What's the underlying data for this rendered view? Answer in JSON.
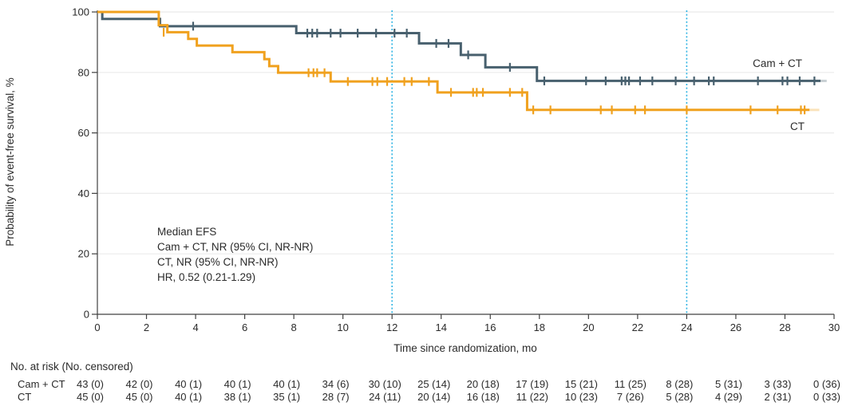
{
  "chart_data": {
    "type": "line",
    "subtype": "kaplan-meier-step",
    "title": "",
    "xlabel": "Time since randomization, mo",
    "ylabel": "Probability of event-free survival, %",
    "xlim": [
      0,
      30
    ],
    "ylim": [
      0,
      100
    ],
    "xticks": [
      0,
      2,
      4,
      6,
      8,
      10,
      12,
      14,
      16,
      18,
      20,
      22,
      24,
      26,
      28,
      30
    ],
    "yticks": [
      0,
      20,
      40,
      60,
      80,
      100
    ],
    "grid": "horizontal",
    "legend_position": "labels-at-line-end",
    "reference_lines_x": [
      12,
      24
    ],
    "annotation": {
      "lines": [
        "Median EFS",
        "Cam + CT, NR (95% CI, NR-NR)",
        "CT, NR (95% CI, NR-NR)",
        "HR, 0.52 (0.21-1.29)"
      ]
    },
    "series": [
      {
        "name": "Cam + CT",
        "color": "#48606E",
        "steps": [
          [
            0,
            100
          ],
          [
            0.2,
            97.7
          ],
          [
            2.55,
            95.3
          ],
          [
            8.1,
            93.0
          ],
          [
            13.1,
            89.6
          ],
          [
            14.8,
            85.8
          ],
          [
            15.8,
            81.7
          ],
          [
            17.9,
            77.2
          ],
          [
            29.45,
            77.2
          ]
        ],
        "tail_to": 29.7,
        "censors": [
          [
            3.9,
            95.3
          ],
          [
            8.55,
            93.0
          ],
          [
            8.75,
            93.0
          ],
          [
            8.95,
            93.0
          ],
          [
            9.5,
            93.0
          ],
          [
            9.9,
            93.0
          ],
          [
            10.6,
            93.0
          ],
          [
            11.35,
            93.0
          ],
          [
            12.1,
            93.0
          ],
          [
            12.6,
            93.0
          ],
          [
            13.8,
            89.6
          ],
          [
            14.3,
            89.6
          ],
          [
            15.1,
            85.8
          ],
          [
            16.8,
            81.7
          ],
          [
            18.2,
            77.2
          ],
          [
            19.9,
            77.2
          ],
          [
            20.7,
            77.2
          ],
          [
            21.35,
            77.2
          ],
          [
            21.5,
            77.2
          ],
          [
            21.65,
            77.2
          ],
          [
            22.1,
            77.2
          ],
          [
            22.6,
            77.2
          ],
          [
            23.55,
            77.2
          ],
          [
            24.3,
            77.2
          ],
          [
            24.9,
            77.2
          ],
          [
            25.1,
            77.2
          ],
          [
            26.9,
            77.2
          ],
          [
            27.9,
            77.2
          ],
          [
            28.1,
            77.2
          ],
          [
            28.6,
            77.2
          ],
          [
            29.2,
            77.2
          ]
        ]
      },
      {
        "name": "CT",
        "color": "#F0A11E",
        "steps": [
          [
            0,
            100
          ],
          [
            2.5,
            95.6
          ],
          [
            2.85,
            93.3
          ],
          [
            3.7,
            91.1
          ],
          [
            4.05,
            88.9
          ],
          [
            5.5,
            86.7
          ],
          [
            6.8,
            84.4
          ],
          [
            7.0,
            82.1
          ],
          [
            7.36,
            79.9
          ],
          [
            9.5,
            77.0
          ],
          [
            13.85,
            73.4
          ],
          [
            17.5,
            67.6
          ],
          [
            29.0,
            67.6
          ]
        ],
        "tail_to": 29.4,
        "censors": [
          [
            2.7,
            93.3
          ],
          [
            8.6,
            79.9
          ],
          [
            8.8,
            79.9
          ],
          [
            8.95,
            79.9
          ],
          [
            9.25,
            79.9
          ],
          [
            10.2,
            77.0
          ],
          [
            11.2,
            77.0
          ],
          [
            11.4,
            77.0
          ],
          [
            11.8,
            77.0
          ],
          [
            12.5,
            77.0
          ],
          [
            12.8,
            77.0
          ],
          [
            13.5,
            77.0
          ],
          [
            14.4,
            73.4
          ],
          [
            15.3,
            73.4
          ],
          [
            15.45,
            73.4
          ],
          [
            15.7,
            73.4
          ],
          [
            16.8,
            73.4
          ],
          [
            17.3,
            73.4
          ],
          [
            17.75,
            67.6
          ],
          [
            18.45,
            67.6
          ],
          [
            20.5,
            67.6
          ],
          [
            20.95,
            67.6
          ],
          [
            21.9,
            67.6
          ],
          [
            22.3,
            67.6
          ],
          [
            24.0,
            67.6
          ],
          [
            26.6,
            67.6
          ],
          [
            27.7,
            67.6
          ],
          [
            28.65,
            67.6
          ],
          [
            28.8,
            67.6
          ]
        ]
      }
    ],
    "risk_table": {
      "header": "No. at risk (No. censored)",
      "times": [
        0,
        2,
        4,
        6,
        8,
        10,
        12,
        14,
        16,
        18,
        20,
        22,
        24,
        26,
        28,
        30
      ],
      "rows": [
        {
          "label": "Cam + CT",
          "values": [
            "43 (0)",
            "42 (0)",
            "40 (1)",
            "40 (1)",
            "40 (1)",
            "34 (6)",
            "30 (10)",
            "25 (14)",
            "20 (18)",
            "17 (19)",
            "15 (21)",
            "11 (25)",
            "8 (28)",
            "5 (31)",
            "3 (33)",
            "0 (36)"
          ]
        },
        {
          "label": "CT",
          "values": [
            "45 (0)",
            "45 (0)",
            "40 (1)",
            "38 (1)",
            "35 (1)",
            "28 (7)",
            "24 (11)",
            "20 (14)",
            "16 (18)",
            "11 (22)",
            "10 (23)",
            "7 (26)",
            "5 (28)",
            "4 (29)",
            "2 (31)",
            "0 (33)"
          ]
        }
      ]
    },
    "colors": {
      "cam_ct_line": "#48606E",
      "ct_line": "#F0A11E",
      "reference_line": "#2FB3E3",
      "gridline": "#EBEBEB",
      "axis": "#404040",
      "text": "#2b2b2b"
    }
  }
}
